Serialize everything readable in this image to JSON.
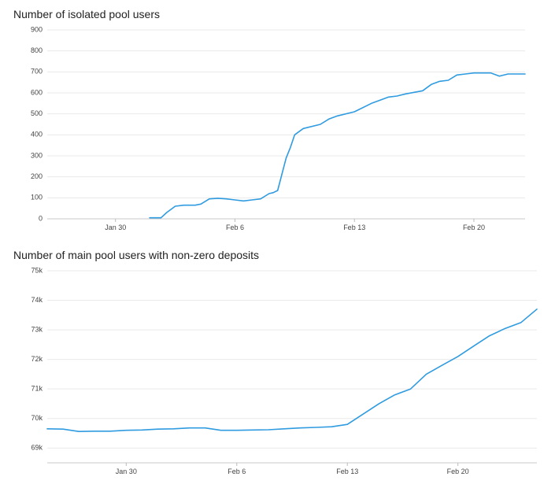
{
  "chart_data": [
    {
      "type": "line",
      "title": "Number of isolated pool users",
      "xlabel": "",
      "ylabel": "",
      "ylim": [
        0,
        900
      ],
      "yticks": [
        "0",
        "100",
        "200",
        "300",
        "400",
        "500",
        "600",
        "700",
        "800",
        "900"
      ],
      "xticks": [
        "Jan 30",
        "Feb 6",
        "Feb 13",
        "Feb 20"
      ],
      "x_range": [
        "2022-01-26",
        "2022-02-23"
      ],
      "grid": true,
      "series": [
        {
          "color": "#2f9be0",
          "x": [
            "2022-02-01",
            "2022-02-01T16:00",
            "2022-02-02",
            "2022-02-02T12:00",
            "2022-02-03",
            "2022-02-03T16:00",
            "2022-02-04",
            "2022-02-04T12:00",
            "2022-02-05",
            "2022-02-05T12:00",
            "2022-02-06",
            "2022-02-06T12:00",
            "2022-02-07",
            "2022-02-07T12:00",
            "2022-02-08",
            "2022-02-08T06:00",
            "2022-02-08T12:00",
            "2022-02-09",
            "2022-02-09T06:00",
            "2022-02-09T12:00",
            "2022-02-10",
            "2022-02-11",
            "2022-02-11T12:00",
            "2022-02-12",
            "2022-02-13",
            "2022-02-14",
            "2022-02-15",
            "2022-02-15T12:00",
            "2022-02-16",
            "2022-02-17",
            "2022-02-17T12:00",
            "2022-02-18",
            "2022-02-18T12:00",
            "2022-02-19",
            "2022-02-19T12:00",
            "2022-02-20",
            "2022-02-21",
            "2022-02-21T12:00",
            "2022-02-22",
            "2022-02-23"
          ],
          "y": [
            5,
            5,
            30,
            60,
            65,
            65,
            70,
            95,
            98,
            95,
            90,
            85,
            90,
            95,
            120,
            125,
            135,
            290,
            340,
            400,
            430,
            450,
            475,
            490,
            510,
            550,
            580,
            585,
            595,
            610,
            640,
            655,
            660,
            685,
            690,
            695,
            695,
            680,
            690,
            690
          ]
        }
      ]
    },
    {
      "type": "line",
      "title": "Number of main pool users with non-zero deposits",
      "xlabel": "",
      "ylabel": "",
      "ylim": [
        68500,
        75000
      ],
      "yticks": [
        "69k",
        "70k",
        "71k",
        "72k",
        "73k",
        "74k",
        "75k"
      ],
      "xticks": [
        "Jan 30",
        "Feb 6",
        "Feb 13",
        "Feb 20"
      ],
      "x_range": [
        "2022-01-25",
        "2022-02-25"
      ],
      "grid": true,
      "series": [
        {
          "color": "#2f9be0",
          "x": [
            "2022-01-25",
            "2022-01-26",
            "2022-01-27",
            "2022-01-28",
            "2022-01-29",
            "2022-01-30",
            "2022-01-31",
            "2022-02-01",
            "2022-02-02",
            "2022-02-03",
            "2022-02-04",
            "2022-02-05",
            "2022-02-06",
            "2022-02-07",
            "2022-02-08",
            "2022-02-09",
            "2022-02-10",
            "2022-02-11",
            "2022-02-12",
            "2022-02-13",
            "2022-02-14",
            "2022-02-15",
            "2022-02-16",
            "2022-02-17",
            "2022-02-18",
            "2022-02-19",
            "2022-02-20",
            "2022-02-21",
            "2022-02-22",
            "2022-02-23",
            "2022-02-24",
            "2022-02-25"
          ],
          "y": [
            69650,
            69640,
            69560,
            69570,
            69570,
            69600,
            69610,
            69640,
            69650,
            69680,
            69680,
            69600,
            69600,
            69610,
            69620,
            69650,
            69680,
            69700,
            69720,
            69800,
            70150,
            70500,
            70800,
            71000,
            71500,
            71800,
            72100,
            72450,
            72800,
            73050,
            73250,
            73700
          ]
        }
      ]
    }
  ]
}
